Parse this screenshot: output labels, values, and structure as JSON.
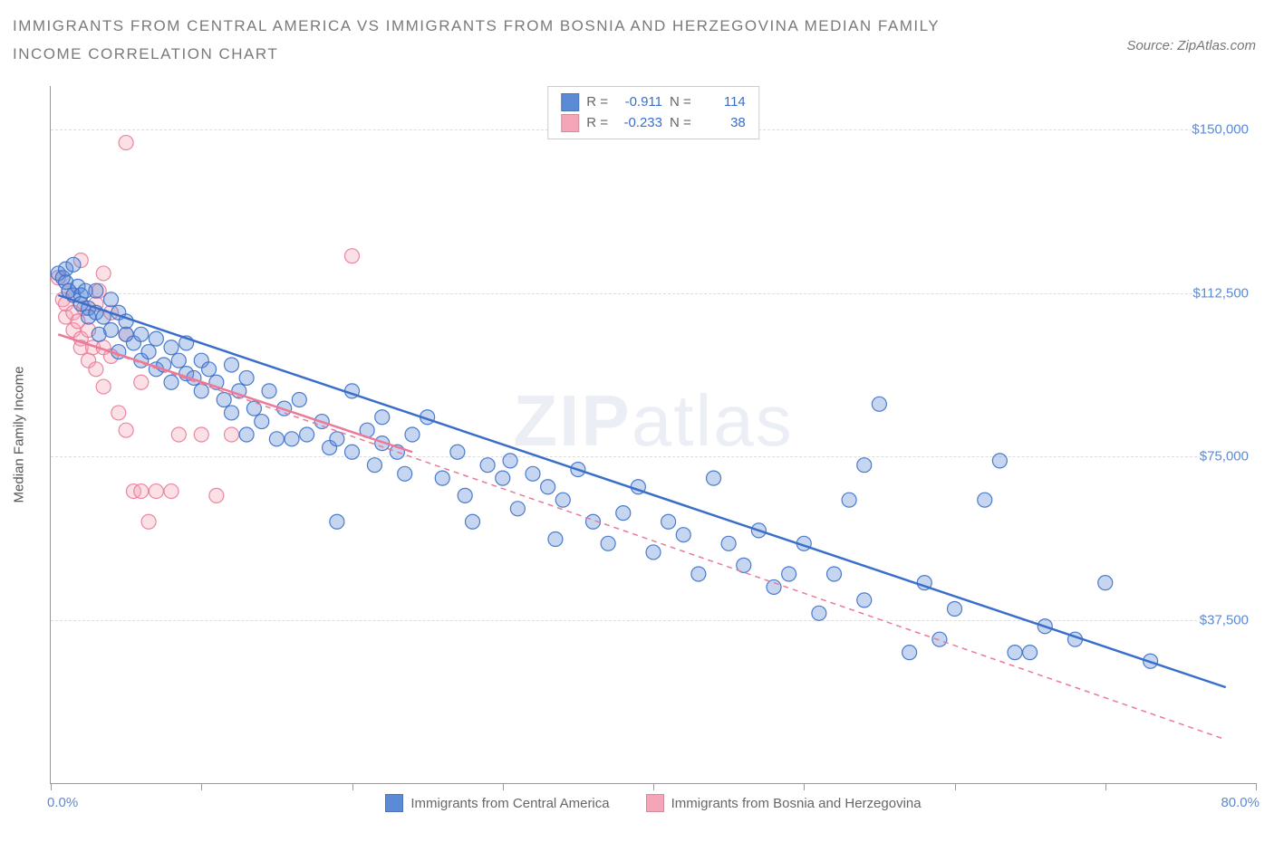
{
  "title": "IMMIGRANTS FROM CENTRAL AMERICA VS IMMIGRANTS FROM BOSNIA AND HERZEGOVINA MEDIAN FAMILY INCOME CORRELATION CHART",
  "source": "Source: ZipAtlas.com",
  "watermark_bold": "ZIP",
  "watermark_light": "atlas",
  "y_axis_label": "Median Family Income",
  "chart": {
    "type": "scatter",
    "background_color": "#ffffff",
    "grid_color": "#dddddd",
    "xlim": [
      0,
      80
    ],
    "ylim": [
      0,
      160000
    ],
    "x_unit": "%",
    "x_tick_positions": [
      0,
      10,
      20,
      30,
      40,
      50,
      60,
      70,
      80
    ],
    "x_min_label": "0.0%",
    "x_max_label": "80.0%",
    "y_ticks": [
      {
        "v": 37500,
        "label": "$37,500"
      },
      {
        "v": 75000,
        "label": "$75,000"
      },
      {
        "v": 112500,
        "label": "$112,500"
      },
      {
        "v": 150000,
        "label": "$150,000"
      }
    ],
    "label_fontsize": 15,
    "marker_radius": 8,
    "marker_fill_opacity": 0.35,
    "marker_stroke_opacity": 0.9,
    "marker_stroke_width": 1.2,
    "series": [
      {
        "id": "central_america",
        "name": "Immigrants from Central America",
        "color": "#5b8ad6",
        "stroke": "#3a6fc9",
        "R": "-0.911",
        "N": "114",
        "trend": {
          "x1": 0.5,
          "y1": 112000,
          "x2": 78,
          "y2": 22000,
          "width": 2.5,
          "dash": "none"
        },
        "points": [
          [
            0.5,
            117000
          ],
          [
            0.8,
            116000
          ],
          [
            1,
            115000
          ],
          [
            1,
            118000
          ],
          [
            1.2,
            113000
          ],
          [
            1.5,
            112000
          ],
          [
            1.5,
            119000
          ],
          [
            1.8,
            114000
          ],
          [
            2,
            112000
          ],
          [
            2,
            110000
          ],
          [
            2.3,
            113000
          ],
          [
            2.5,
            109000
          ],
          [
            2.5,
            107000
          ],
          [
            3,
            113000
          ],
          [
            3,
            108000
          ],
          [
            3.2,
            103000
          ],
          [
            3.5,
            107000
          ],
          [
            4,
            104000
          ],
          [
            4,
            111000
          ],
          [
            4.5,
            108000
          ],
          [
            4.5,
            99000
          ],
          [
            5,
            103000
          ],
          [
            5,
            106000
          ],
          [
            5.5,
            101000
          ],
          [
            6,
            103000
          ],
          [
            6,
            97000
          ],
          [
            6.5,
            99000
          ],
          [
            7,
            102000
          ],
          [
            7,
            95000
          ],
          [
            7.5,
            96000
          ],
          [
            8,
            100000
          ],
          [
            8,
            92000
          ],
          [
            8.5,
            97000
          ],
          [
            9,
            94000
          ],
          [
            9,
            101000
          ],
          [
            9.5,
            93000
          ],
          [
            10,
            97000
          ],
          [
            10,
            90000
          ],
          [
            10.5,
            95000
          ],
          [
            11,
            92000
          ],
          [
            11.5,
            88000
          ],
          [
            12,
            96000
          ],
          [
            12,
            85000
          ],
          [
            12.5,
            90000
          ],
          [
            13,
            93000
          ],
          [
            13,
            80000
          ],
          [
            13.5,
            86000
          ],
          [
            14,
            83000
          ],
          [
            14.5,
            90000
          ],
          [
            15,
            79000
          ],
          [
            15.5,
            86000
          ],
          [
            16,
            79000
          ],
          [
            16.5,
            88000
          ],
          [
            17,
            80000
          ],
          [
            18,
            83000
          ],
          [
            18.5,
            77000
          ],
          [
            19,
            79000
          ],
          [
            20,
            90000
          ],
          [
            20,
            76000
          ],
          [
            21,
            81000
          ],
          [
            21.5,
            73000
          ],
          [
            22,
            78000
          ],
          [
            23,
            76000
          ],
          [
            23.5,
            71000
          ],
          [
            24,
            80000
          ],
          [
            25,
            84000
          ],
          [
            26,
            70000
          ],
          [
            27,
            76000
          ],
          [
            27.5,
            66000
          ],
          [
            28,
            60000
          ],
          [
            29,
            73000
          ],
          [
            30,
            70000
          ],
          [
            30.5,
            74000
          ],
          [
            31,
            63000
          ],
          [
            32,
            71000
          ],
          [
            33,
            68000
          ],
          [
            33.5,
            56000
          ],
          [
            34,
            65000
          ],
          [
            35,
            72000
          ],
          [
            36,
            60000
          ],
          [
            37,
            55000
          ],
          [
            38,
            62000
          ],
          [
            39,
            68000
          ],
          [
            40,
            53000
          ],
          [
            41,
            60000
          ],
          [
            42,
            57000
          ],
          [
            43,
            48000
          ],
          [
            44,
            70000
          ],
          [
            45,
            55000
          ],
          [
            46,
            50000
          ],
          [
            47,
            58000
          ],
          [
            48,
            45000
          ],
          [
            49,
            48000
          ],
          [
            50,
            55000
          ],
          [
            51,
            39000
          ],
          [
            52,
            48000
          ],
          [
            53,
            65000
          ],
          [
            54,
            42000
          ],
          [
            55,
            87000
          ],
          [
            57,
            30000
          ],
          [
            58,
            46000
          ],
          [
            59,
            33000
          ],
          [
            60,
            40000
          ],
          [
            62,
            65000
          ],
          [
            63,
            74000
          ],
          [
            64,
            30000
          ],
          [
            65,
            30000
          ],
          [
            66,
            36000
          ],
          [
            68,
            33000
          ],
          [
            70,
            46000
          ],
          [
            73,
            28000
          ],
          [
            54,
            73000
          ],
          [
            22,
            84000
          ],
          [
            19,
            60000
          ]
        ]
      },
      {
        "id": "bosnia",
        "name": "Immigrants from Bosnia and Herzegovina",
        "color": "#f4a6b8",
        "stroke": "#ea7a97",
        "R": "-0.233",
        "N": "38",
        "trend": {
          "x1": 0.5,
          "y1": 103000,
          "x2": 78,
          "y2": 10000,
          "width": 1.5,
          "dash": "6,5"
        },
        "trend_solid": {
          "x1": 0.5,
          "y1": 103000,
          "x2": 24,
          "y2": 76000,
          "width": 2.5
        },
        "points": [
          [
            0.5,
            116000
          ],
          [
            0.8,
            111000
          ],
          [
            1,
            107000
          ],
          [
            1,
            110000
          ],
          [
            1.2,
            113000
          ],
          [
            1.5,
            108000
          ],
          [
            1.5,
            104000
          ],
          [
            1.8,
            106000
          ],
          [
            2,
            102000
          ],
          [
            2,
            100000
          ],
          [
            2.2,
            109000
          ],
          [
            2.5,
            104000
          ],
          [
            2.5,
            97000
          ],
          [
            2.8,
            100000
          ],
          [
            3,
            95000
          ],
          [
            3,
            110000
          ],
          [
            3.2,
            113000
          ],
          [
            3.5,
            100000
          ],
          [
            3.5,
            91000
          ],
          [
            4,
            98000
          ],
          [
            4,
            108000
          ],
          [
            4.5,
            85000
          ],
          [
            5,
            103000
          ],
          [
            5,
            81000
          ],
          [
            5.5,
            67000
          ],
          [
            6,
            67000
          ],
          [
            6,
            92000
          ],
          [
            6.5,
            60000
          ],
          [
            7,
            67000
          ],
          [
            8,
            67000
          ],
          [
            8.5,
            80000
          ],
          [
            10,
            80000
          ],
          [
            11,
            66000
          ],
          [
            12,
            80000
          ],
          [
            5,
            147000
          ],
          [
            20,
            121000
          ],
          [
            2,
            120000
          ],
          [
            3.5,
            117000
          ]
        ]
      }
    ],
    "legend_top": {
      "R_label": "R =",
      "N_label": "N ="
    }
  }
}
